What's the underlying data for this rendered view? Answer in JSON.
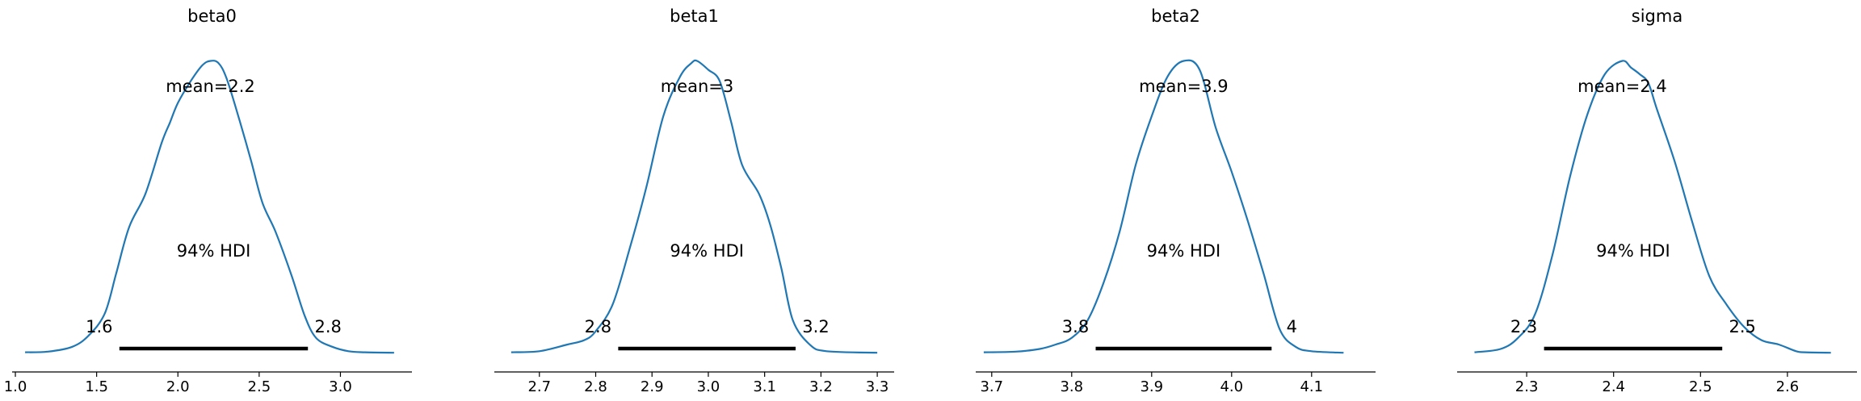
{
  "chart_data": [
    {
      "type": "area",
      "title": "beta0",
      "mean_label": "mean=2.2",
      "hdi_label": "94% HDI",
      "hdi": [
        1.64,
        2.8
      ],
      "hdi_labels": [
        "1.6",
        "2.8"
      ],
      "xlim": [
        0.98,
        3.44
      ],
      "ticks": [
        1.0,
        1.5,
        2.0,
        2.5,
        3.0
      ],
      "tick_labels": [
        "1.0",
        "1.5",
        "2.0",
        "2.5",
        "3.0"
      ],
      "x": [
        1.06,
        1.2,
        1.35,
        1.45,
        1.55,
        1.62,
        1.7,
        1.8,
        1.9,
        1.95,
        2.0,
        2.08,
        2.15,
        2.2,
        2.25,
        2.3,
        2.38,
        2.45,
        2.52,
        2.6,
        2.7,
        2.78,
        2.85,
        2.95,
        3.05,
        3.15,
        3.33
      ],
      "density": [
        0.005,
        0.008,
        0.03,
        0.08,
        0.18,
        0.36,
        0.57,
        0.72,
        0.95,
        1.04,
        1.13,
        1.23,
        1.3,
        1.32,
        1.31,
        1.24,
        1.05,
        0.87,
        0.68,
        0.55,
        0.35,
        0.17,
        0.07,
        0.03,
        0.01,
        0.005,
        0.003
      ],
      "ylim": [
        0,
        1.42
      ]
    },
    {
      "type": "area",
      "title": "beta1",
      "mean_label": "mean=3",
      "hdi_label": "94% HDI",
      "hdi": [
        2.84,
        3.155
      ],
      "hdi_labels": [
        "2.8",
        "3.2"
      ],
      "xlim": [
        2.62,
        3.33
      ],
      "ticks": [
        2.7,
        2.8,
        2.9,
        3.0,
        3.1,
        3.2,
        3.3
      ],
      "tick_labels": [
        "2.7",
        "2.8",
        "2.9",
        "3.0",
        "3.1",
        "3.2",
        "3.3"
      ],
      "x": [
        2.65,
        2.7,
        2.75,
        2.78,
        2.8,
        2.83,
        2.86,
        2.89,
        2.92,
        2.95,
        2.97,
        2.98,
        3.0,
        3.02,
        3.04,
        3.06,
        3.09,
        3.11,
        3.13,
        3.15,
        3.18,
        3.21,
        3.3
      ],
      "density": [
        0.005,
        0.01,
        0.04,
        0.06,
        0.1,
        0.22,
        0.47,
        0.75,
        1.07,
        1.25,
        1.31,
        1.32,
        1.28,
        1.23,
        1.05,
        0.85,
        0.72,
        0.58,
        0.38,
        0.15,
        0.04,
        0.01,
        0.003
      ],
      "ylim": [
        0,
        1.42
      ]
    },
    {
      "type": "area",
      "title": "beta2",
      "mean_label": "mean=3.9",
      "hdi_label": "94% HDI",
      "hdi": [
        3.83,
        4.05
      ],
      "hdi_labels": [
        "3.8",
        "4"
      ],
      "xlim": [
        3.68,
        4.18
      ],
      "ticks": [
        3.7,
        3.8,
        3.9,
        4.0,
        4.1
      ],
      "tick_labels": [
        "3.7",
        "3.8",
        "3.9",
        "4.0",
        "4.1"
      ],
      "x": [
        3.69,
        3.73,
        3.76,
        3.78,
        3.8,
        3.82,
        3.84,
        3.86,
        3.88,
        3.9,
        3.92,
        3.94,
        3.96,
        3.98,
        4.0,
        4.02,
        4.04,
        4.06,
        4.08,
        4.1,
        4.14
      ],
      "density": [
        0.005,
        0.008,
        0.02,
        0.04,
        0.07,
        0.15,
        0.32,
        0.55,
        0.85,
        1.07,
        1.25,
        1.32,
        1.28,
        1.02,
        0.82,
        0.6,
        0.36,
        0.11,
        0.03,
        0.01,
        0.003
      ],
      "ylim": [
        0,
        1.42
      ]
    },
    {
      "type": "area",
      "title": "sigma",
      "mean_label": "mean=2.4",
      "hdi_label": "94% HDI",
      "hdi": [
        2.32,
        2.525
      ],
      "hdi_labels": [
        "2.3",
        "2.5"
      ],
      "xlim": [
        2.22,
        2.68
      ],
      "ticks": [
        2.3,
        2.4,
        2.5,
        2.6
      ],
      "tick_labels": [
        "2.3",
        "2.4",
        "2.5",
        "2.6"
      ],
      "x": [
        2.24,
        2.27,
        2.29,
        2.31,
        2.33,
        2.35,
        2.37,
        2.39,
        2.41,
        2.42,
        2.43,
        2.44,
        2.45,
        2.47,
        2.49,
        2.51,
        2.53,
        2.55,
        2.57,
        2.59,
        2.61,
        2.62,
        2.65
      ],
      "density": [
        0.005,
        0.02,
        0.07,
        0.18,
        0.45,
        0.8,
        1.08,
        1.26,
        1.32,
        1.29,
        1.26,
        1.22,
        1.1,
        0.87,
        0.6,
        0.35,
        0.22,
        0.12,
        0.06,
        0.04,
        0.01,
        0.005,
        0.003
      ],
      "ylim": [
        0,
        1.42
      ]
    }
  ]
}
